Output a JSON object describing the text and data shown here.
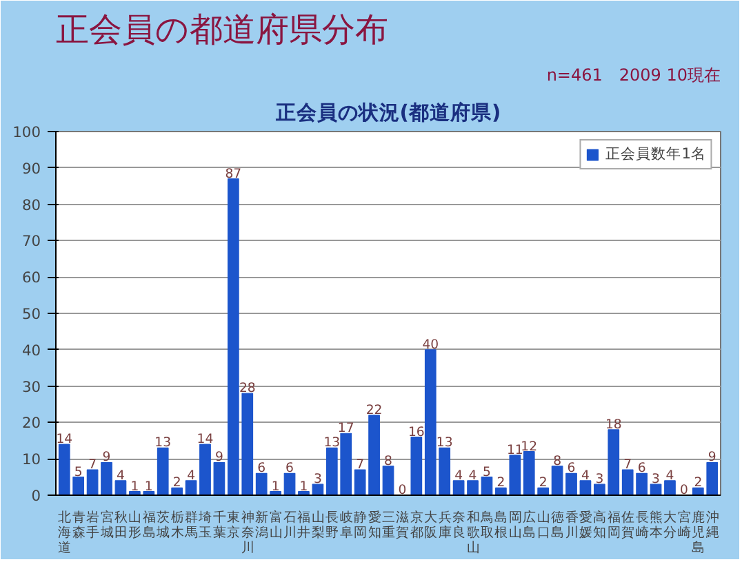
{
  "chart_data": {
    "type": "bar",
    "title": "正会員の都道府県分布",
    "subtitle": "n=461　2009 10現在",
    "annotations": [
      "正会員の状況(都道府県)"
    ],
    "categories": [
      "北海道",
      "青森",
      "岩手",
      "宮城",
      "秋田",
      "山形",
      "福島",
      "茨城",
      "栃木",
      "群馬",
      "埼玉",
      "千葉",
      "東京",
      "神奈川",
      "新潟",
      "富山",
      "石川",
      "福井",
      "山梨",
      "長野",
      "岐阜",
      "静岡",
      "愛知",
      "三重",
      "滋賀",
      "京都",
      "大阪",
      "兵庫",
      "奈良",
      "和歌山",
      "鳥取",
      "島根",
      "岡山",
      "広島",
      "山口",
      "徳島",
      "香川",
      "愛媛",
      "高知",
      "福岡",
      "佐賀",
      "長崎",
      "熊本",
      "大分",
      "宮崎",
      "鹿児島",
      "沖縄"
    ],
    "series": [
      {
        "name": "正会員数年1名",
        "color": "#1c55cc",
        "values": [
          14,
          5,
          7,
          9,
          4,
          1,
          1,
          13,
          2,
          4,
          14,
          9,
          87,
          28,
          6,
          1,
          6,
          1,
          3,
          13,
          17,
          7,
          22,
          8,
          0,
          16,
          40,
          13,
          4,
          4,
          5,
          2,
          11,
          12,
          2,
          8,
          6,
          4,
          3,
          18,
          7,
          6,
          3,
          4,
          0,
          2,
          9
        ]
      }
    ],
    "ylim": [
      0,
      100
    ],
    "yticks": [
      0,
      10,
      20,
      30,
      40,
      50,
      60,
      70,
      80,
      90,
      100
    ],
    "grid": "y",
    "legend": "top right",
    "data_labels": true
  }
}
